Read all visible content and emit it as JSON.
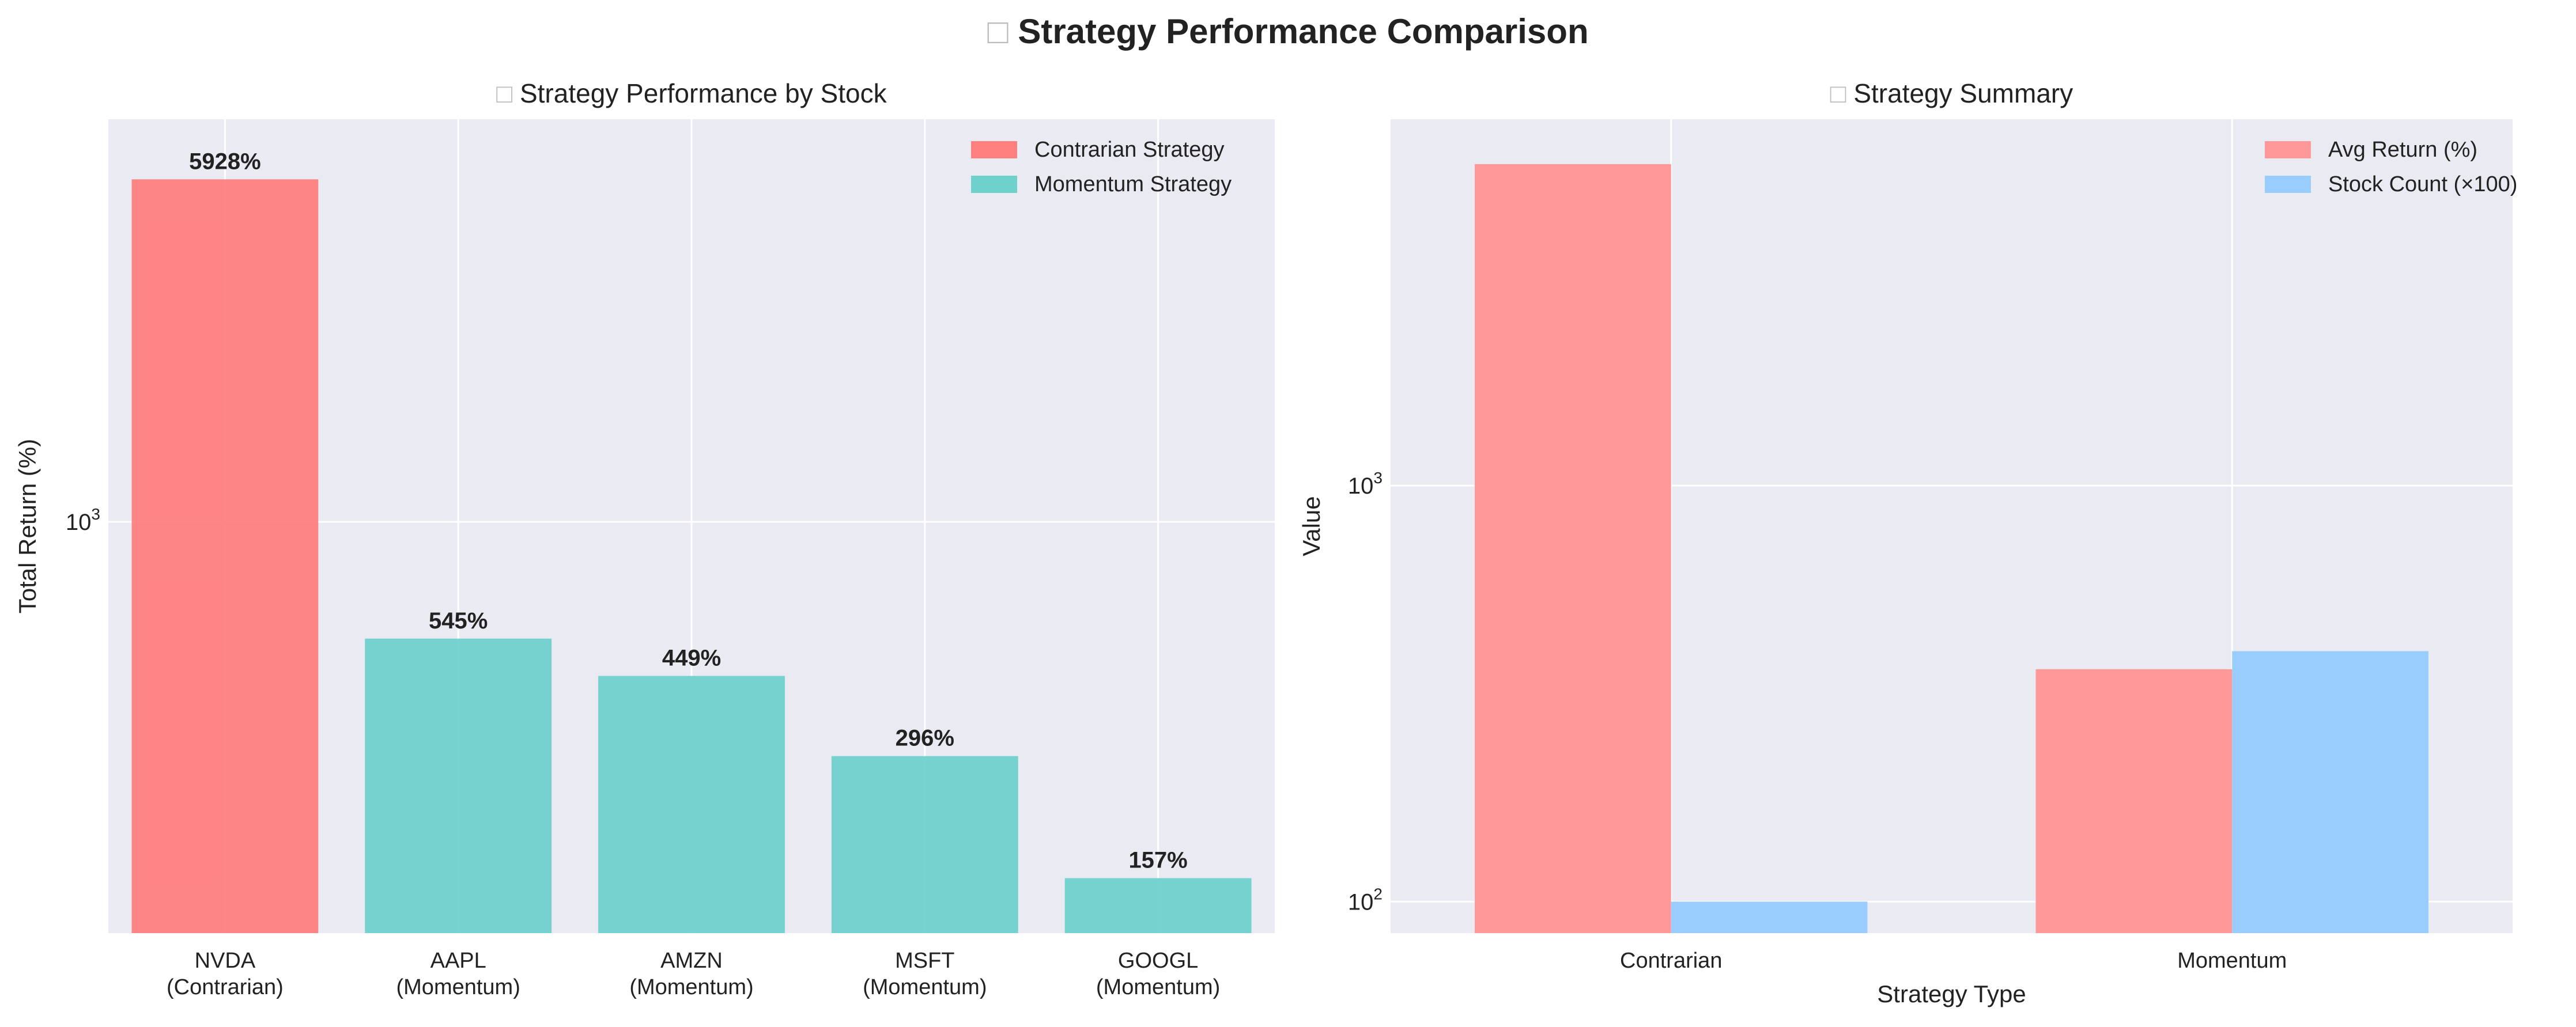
{
  "figure": {
    "title_icon": "□",
    "title": "Strategy Performance Comparison"
  },
  "chart_data": [
    {
      "type": "bar",
      "title_icon": "□",
      "title": "Strategy Performance by Stock",
      "xlabel": "",
      "ylabel": "Total Return (%)",
      "yscale": "log",
      "ylim": [
        118,
        8100
      ],
      "yticks": [
        {
          "value": 1000,
          "base": "10",
          "exp": "3"
        }
      ],
      "grid": true,
      "legend_position": "top-right",
      "categories": [
        [
          "NVDA",
          "(Contrarian)"
        ],
        [
          "AAPL",
          "(Momentum)"
        ],
        [
          "AMZN",
          "(Momentum)"
        ],
        [
          "MSFT",
          "(Momentum)"
        ],
        [
          "GOOGL",
          "(Momentum)"
        ]
      ],
      "values": [
        5928,
        545,
        449,
        296,
        157
      ],
      "value_labels": [
        "5928%",
        "545%",
        "449%",
        "296%",
        "157%"
      ],
      "bar_groups": [
        "Contrarian Strategy",
        "Momentum Strategy",
        "Momentum Strategy",
        "Momentum Strategy",
        "Momentum Strategy"
      ],
      "legend": [
        {
          "name": "Contrarian Strategy",
          "color": "#ff7f7f"
        },
        {
          "name": "Momentum Strategy",
          "color": "#6fd1cc"
        }
      ]
    },
    {
      "type": "bar",
      "title_icon": "□",
      "title": "Strategy Summary",
      "xlabel": "Strategy Type",
      "ylabel": "Value",
      "yscale": "log",
      "ylim": [
        84,
        7600
      ],
      "yticks": [
        {
          "value": 100,
          "base": "10",
          "exp": "2"
        },
        {
          "value": 1000,
          "base": "10",
          "exp": "3"
        }
      ],
      "grid": true,
      "legend_position": "top-right",
      "categories": [
        "Contrarian",
        "Momentum"
      ],
      "series": [
        {
          "name": "Avg Return (%)",
          "color": "#ff9999",
          "values": [
            5928,
            362
          ]
        },
        {
          "name": "Stock Count (×100)",
          "color": "#99ccff",
          "values": [
            100,
            400
          ]
        }
      ]
    }
  ]
}
